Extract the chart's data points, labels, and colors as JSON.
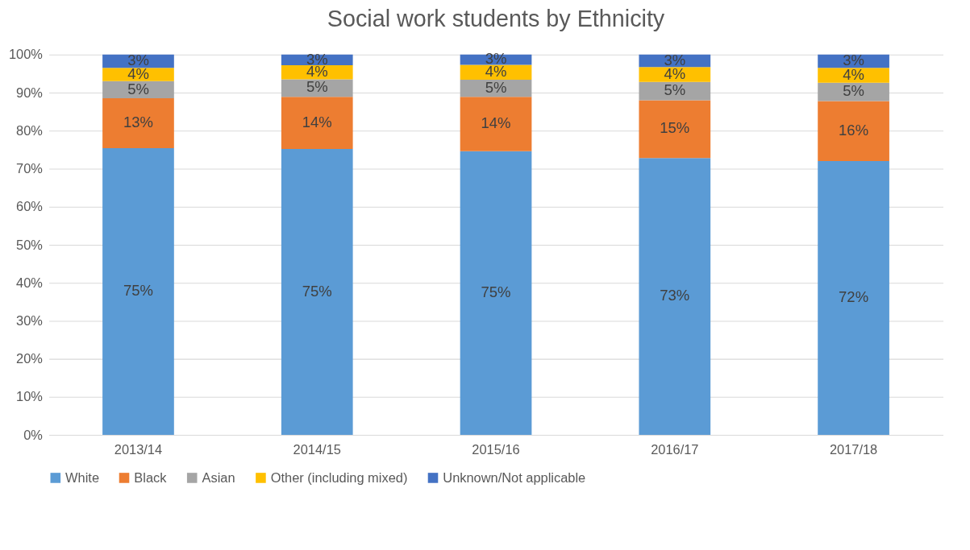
{
  "chart_data": {
    "type": "bar",
    "stacked": true,
    "title": "Social work students by Ethnicity",
    "categories": [
      "2013/14",
      "2014/15",
      "2015/16",
      "2016/17",
      "2017/18"
    ],
    "series": [
      {
        "name": "White",
        "color": "#5b9bd5",
        "values": [
          75.4,
          75.2,
          74.6,
          72.8,
          72.0
        ],
        "value_labels": [
          "75%",
          "75%",
          "75%",
          "73%",
          "72%"
        ]
      },
      {
        "name": "Black",
        "color": "#ed7d31",
        "values": [
          13.1,
          13.7,
          14.3,
          15.2,
          15.8
        ],
        "value_labels": [
          "13%",
          "14%",
          "14%",
          "15%",
          "16%"
        ]
      },
      {
        "name": "Asian",
        "color": "#a5a5a5",
        "values": [
          4.5,
          4.6,
          4.5,
          4.8,
          4.8
        ],
        "value_labels": [
          "5%",
          "5%",
          "5%",
          "5%",
          "5%"
        ]
      },
      {
        "name": "Other (including mixed)",
        "color": "#ffc000",
        "values": [
          3.5,
          3.7,
          3.9,
          3.9,
          3.9
        ],
        "value_labels": [
          "4%",
          "4%",
          "4%",
          "4%",
          "4%"
        ]
      },
      {
        "name": "Unknown/Not applicable",
        "color": "#4472c4",
        "values": [
          3.5,
          2.8,
          2.7,
          3.3,
          3.5
        ],
        "value_labels": [
          "3%",
          "3%",
          "3%",
          "3%",
          "3%"
        ]
      }
    ],
    "ylim": [
      0,
      100
    ],
    "yticks": [
      {
        "value": 0,
        "label": "0%"
      },
      {
        "value": 10,
        "label": "10%"
      },
      {
        "value": 20,
        "label": "20%"
      },
      {
        "value": 30,
        "label": "30%"
      },
      {
        "value": 40,
        "label": "40%"
      },
      {
        "value": 50,
        "label": "50%"
      },
      {
        "value": 60,
        "label": "60%"
      },
      {
        "value": 70,
        "label": "70%"
      },
      {
        "value": 80,
        "label": "80%"
      },
      {
        "value": 90,
        "label": "90%"
      },
      {
        "value": 100,
        "label": "100%"
      }
    ],
    "grid": "y",
    "legend": "bottom"
  }
}
